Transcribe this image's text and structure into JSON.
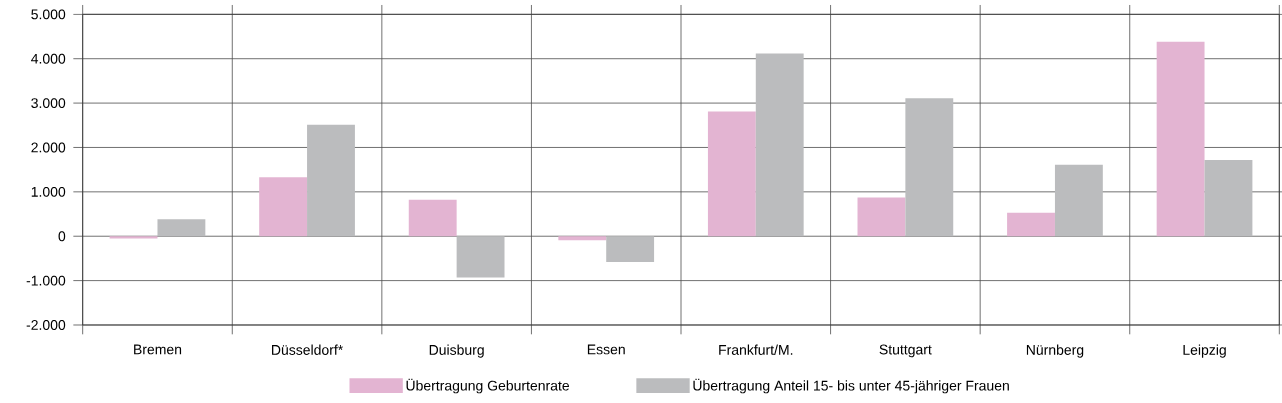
{
  "chart_data": {
    "type": "bar",
    "categories": [
      "Bremen",
      "Düsseldorf*",
      "Duisburg",
      "Essen",
      "Frankfurt/M.",
      "Stuttgart",
      "Nürnberg",
      "Leipzig"
    ],
    "series": [
      {
        "name": "Übertragung Geburtenrate",
        "color": "#e3b4d2",
        "values": [
          -50,
          1330,
          820,
          -90,
          2810,
          870,
          530,
          4380
        ]
      },
      {
        "name": "Übertragung Anteil 15- bis unter 45-jähriger Frauen",
        "color": "#bbbcbe",
        "values": [
          380,
          2510,
          -930,
          -580,
          4120,
          3110,
          1610,
          1720
        ]
      }
    ],
    "ylim": [
      -2000,
      5000
    ],
    "yticks": [
      {
        "value": -2000,
        "label": "-2.000"
      },
      {
        "value": -1000,
        "label": "-1.000"
      },
      0,
      {
        "value": 1000,
        "label": "1.000"
      },
      {
        "value": 2000,
        "label": "2.000"
      },
      {
        "value": 3000,
        "label": "3.000"
      },
      {
        "value": 4000,
        "label": "4.000"
      },
      {
        "value": 5000,
        "label": "5.000"
      }
    ],
    "grid": true,
    "legend": "bottom"
  }
}
